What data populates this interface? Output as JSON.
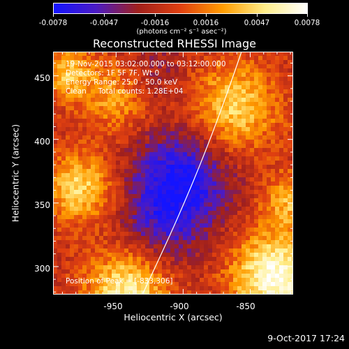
{
  "colorbar": {
    "ticks": [
      "-0.0078",
      "-0.0047",
      "-0.0016",
      "0.0016",
      "0.0047",
      "0.0078"
    ],
    "units": "(photons cm⁻² s⁻¹ asec⁻²)",
    "colors": [
      "#1414ff",
      "#4b1bc4",
      "#a0201c",
      "#e04010",
      "#ff9c00",
      "#ffee8a",
      "#ffffff"
    ]
  },
  "title": "Reconstructed RHESSI Image",
  "info": {
    "time": "19-Nov-2015 03:02:00.000 to 03:12:00.000",
    "detectors": "Detectors: 1F 5F 7F, Wt 0",
    "energy": "Energy Range: 25.0 - 50.0 keV",
    "clean": "Clean     Total counts: 1.28E+04",
    "peak": "Position of Peak = [-833,306]"
  },
  "footer": "9-Oct-2017 17:24",
  "chart_data": {
    "type": "heatmap",
    "title": "Reconstructed RHESSI Image",
    "xlabel": "Heliocentric X (arcsec)",
    "ylabel": "Heliocentric Y (arcsec)",
    "xlim": [
      -997,
      -818
    ],
    "ylim": [
      278,
      469
    ],
    "x_ticks": [
      -950,
      -900,
      -850
    ],
    "y_ticks": [
      300,
      350,
      400,
      450
    ],
    "colorbar_range": [
      -0.0078,
      0.0078
    ],
    "limb_line_color": "#ffffff",
    "peak_position": [
      -833,
      306
    ]
  }
}
